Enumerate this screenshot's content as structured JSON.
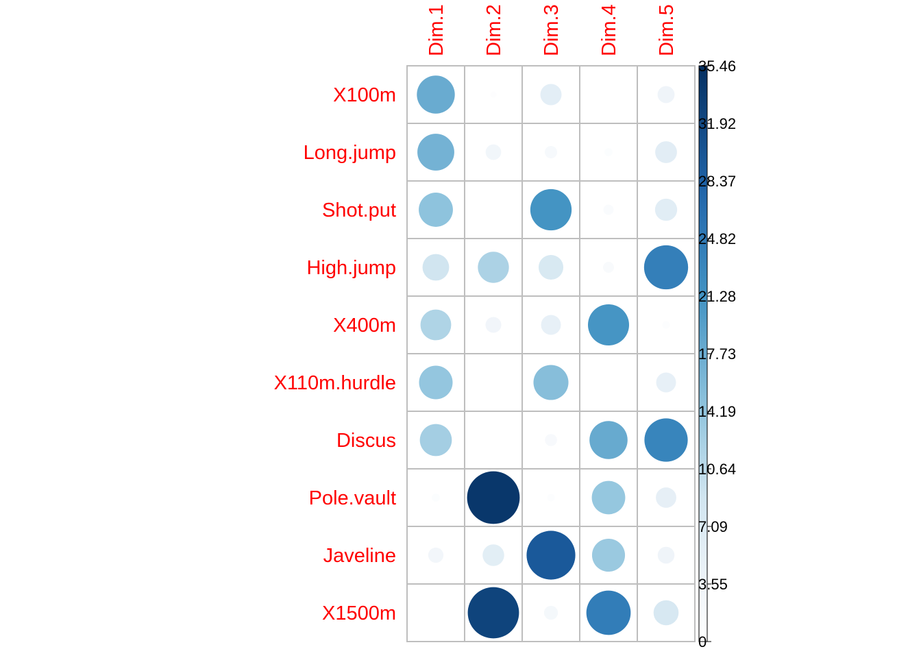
{
  "chart_data": {
    "type": "heatmap",
    "style": "circle correlation plot",
    "rows": [
      "X100m",
      "Long.jump",
      "Shot.put",
      "High.jump",
      "X400m",
      "X110m.hurdle",
      "Discus",
      "Pole.vault",
      "Javeline",
      "X1500m"
    ],
    "columns": [
      "Dim.1",
      "Dim.2",
      "Dim.3",
      "Dim.4",
      "Dim.5"
    ],
    "values": [
      [
        17.9,
        0.5,
        5.6,
        0.0,
        3.6
      ],
      [
        16.9,
        3.0,
        1.9,
        0.8,
        5.9
      ],
      [
        14.5,
        0.1,
        21.2,
        1.3,
        6.1
      ],
      [
        8.8,
        12.0,
        7.6,
        1.5,
        24.1
      ],
      [
        11.7,
        3.1,
        4.9,
        21.0,
        0.7
      ],
      [
        14.0,
        0.0,
        15.2,
        0.0,
        4.9
      ],
      [
        12.7,
        0.0,
        1.8,
        18.0,
        23.3
      ],
      [
        0.8,
        34.4,
        0.7,
        13.9,
        5.2
      ],
      [
        2.9,
        5.8,
        29.5,
        13.5,
        3.5
      ],
      [
        0.0,
        32.6,
        2.4,
        24.4,
        7.8
      ]
    ],
    "colorbar": {
      "ticks": [
        "35.46",
        "31.92",
        "28.37",
        "24.82",
        "21.28",
        "17.73",
        "14.19",
        "10.64",
        "7.09",
        "3.55",
        "0"
      ],
      "min": 0,
      "max": 35.46,
      "low_color": "#ffffff",
      "high_color": "#08306b"
    },
    "grid": true,
    "legend_position": "right"
  }
}
